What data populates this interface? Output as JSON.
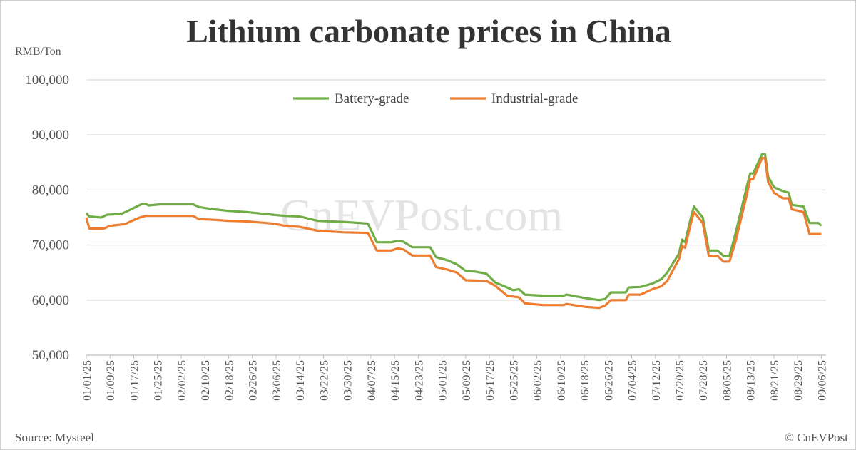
{
  "chart_data": {
    "type": "line",
    "title": "Lithium carbonate prices in China",
    "ylabel": "RMB/Ton",
    "ylim": [
      50000,
      100000
    ],
    "yticks": [
      "50,000",
      "60,000",
      "70,000",
      "80,000",
      "90,000",
      "100,000"
    ],
    "ytick_values": [
      50000,
      60000,
      70000,
      80000,
      90000,
      100000
    ],
    "xlim": [
      "01/01/25",
      "09/07/25"
    ],
    "xticks": [
      "01/01/25",
      "01/09/25",
      "01/17/25",
      "01/25/25",
      "02/02/25",
      "02/10/25",
      "02/18/25",
      "02/26/25",
      "03/06/25",
      "03/14/25",
      "03/22/25",
      "03/30/25",
      "04/07/25",
      "04/15/25",
      "04/23/25",
      "05/01/25",
      "05/09/25",
      "05/17/25",
      "05/25/25",
      "06/02/25",
      "06/10/25",
      "06/18/25",
      "06/26/25",
      "07/04/25",
      "07/12/25",
      "07/20/25",
      "07/28/25",
      "08/05/25",
      "08/13/25",
      "08/21/25",
      "08/29/25",
      "09/06/25"
    ],
    "grid": true,
    "legend_position": "top-center",
    "series": [
      {
        "name": "Battery-grade",
        "color": "#70AD47",
        "points": [
          [
            "01/01/25",
            75800
          ],
          [
            "01/02/25",
            75200
          ],
          [
            "01/06/25",
            75000
          ],
          [
            "01/08/25",
            75500
          ],
          [
            "01/13/25",
            75700
          ],
          [
            "01/15/25",
            76200
          ],
          [
            "01/18/25",
            77000
          ],
          [
            "01/20/25",
            77500
          ],
          [
            "01/21/25",
            77500
          ],
          [
            "01/22/25",
            77200
          ],
          [
            "01/26/25",
            77400
          ],
          [
            "02/06/25",
            77400
          ],
          [
            "02/08/25",
            76900
          ],
          [
            "02/13/25",
            76500
          ],
          [
            "02/18/25",
            76200
          ],
          [
            "02/24/25",
            76000
          ],
          [
            "03/05/25",
            75500
          ],
          [
            "03/09/25",
            75300
          ],
          [
            "03/14/25",
            75200
          ],
          [
            "03/20/25",
            74400
          ],
          [
            "03/29/25",
            74200
          ],
          [
            "04/06/25",
            73900
          ],
          [
            "04/09/25",
            70500
          ],
          [
            "04/14/25",
            70500
          ],
          [
            "04/16/25",
            70800
          ],
          [
            "04/18/25",
            70600
          ],
          [
            "04/21/25",
            69600
          ],
          [
            "04/27/25",
            69600
          ],
          [
            "04/29/25",
            67800
          ],
          [
            "05/03/25",
            67200
          ],
          [
            "05/06/25",
            66500
          ],
          [
            "05/09/25",
            65300
          ],
          [
            "05/12/25",
            65200
          ],
          [
            "05/16/25",
            64800
          ],
          [
            "05/19/25",
            63200
          ],
          [
            "05/23/25",
            62300
          ],
          [
            "05/25/25",
            61800
          ],
          [
            "05/27/25",
            62000
          ],
          [
            "05/29/25",
            61000
          ],
          [
            "06/04/25",
            60800
          ],
          [
            "06/11/25",
            60800
          ],
          [
            "06/12/25",
            61000
          ],
          [
            "06/18/25",
            60400
          ],
          [
            "06/23/25",
            60000
          ],
          [
            "06/25/25",
            60200
          ],
          [
            "06/27/25",
            61400
          ],
          [
            "07/02/25",
            61400
          ],
          [
            "07/03/25",
            62300
          ],
          [
            "07/07/25",
            62400
          ],
          [
            "07/11/25",
            63000
          ],
          [
            "07/14/25",
            63800
          ],
          [
            "07/16/25",
            65000
          ],
          [
            "07/20/25",
            68500
          ],
          [
            "07/21/25",
            71000
          ],
          [
            "07/22/25",
            70500
          ],
          [
            "07/24/25",
            75000
          ],
          [
            "07/25/25",
            77000
          ],
          [
            "07/28/25",
            75000
          ],
          [
            "07/29/25",
            72000
          ],
          [
            "07/30/25",
            69000
          ],
          [
            "08/02/25",
            69000
          ],
          [
            "08/04/25",
            68000
          ],
          [
            "08/06/25",
            68000
          ],
          [
            "08/08/25",
            72000
          ],
          [
            "08/12/25",
            81000
          ],
          [
            "08/13/25",
            83000
          ],
          [
            "08/14/25",
            83000
          ],
          [
            "08/17/25",
            86500
          ],
          [
            "08/18/25",
            86500
          ],
          [
            "08/19/25",
            82500
          ],
          [
            "08/21/25",
            80500
          ],
          [
            "08/24/25",
            79800
          ],
          [
            "08/26/25",
            79500
          ],
          [
            "08/27/25",
            77300
          ],
          [
            "08/31/25",
            77000
          ],
          [
            "09/02/25",
            74000
          ],
          [
            "09/05/25",
            74000
          ],
          [
            "09/06/25",
            73500
          ]
        ]
      },
      {
        "name": "Industrial-grade",
        "color": "#ED7D31",
        "points": [
          [
            "01/01/25",
            75000
          ],
          [
            "01/02/25",
            73000
          ],
          [
            "01/07/25",
            73000
          ],
          [
            "01/09/25",
            73500
          ],
          [
            "01/14/25",
            73800
          ],
          [
            "01/16/25",
            74300
          ],
          [
            "01/19/25",
            75000
          ],
          [
            "01/21/25",
            75300
          ],
          [
            "02/06/25",
            75300
          ],
          [
            "02/08/25",
            74700
          ],
          [
            "02/13/25",
            74600
          ],
          [
            "02/18/25",
            74400
          ],
          [
            "02/24/25",
            74300
          ],
          [
            "03/05/25",
            73900
          ],
          [
            "03/09/25",
            73500
          ],
          [
            "03/14/25",
            73300
          ],
          [
            "03/20/25",
            72600
          ],
          [
            "03/29/25",
            72300
          ],
          [
            "04/06/25",
            72200
          ],
          [
            "04/09/25",
            69000
          ],
          [
            "04/14/25",
            69000
          ],
          [
            "04/16/25",
            69400
          ],
          [
            "04/18/25",
            69200
          ],
          [
            "04/21/25",
            68100
          ],
          [
            "04/27/25",
            68100
          ],
          [
            "04/29/25",
            66000
          ],
          [
            "05/03/25",
            65500
          ],
          [
            "05/06/25",
            65000
          ],
          [
            "05/09/25",
            63600
          ],
          [
            "05/16/25",
            63500
          ],
          [
            "05/19/25",
            62600
          ],
          [
            "05/23/25",
            60800
          ],
          [
            "05/27/25",
            60500
          ],
          [
            "05/29/25",
            59400
          ],
          [
            "06/04/25",
            59100
          ],
          [
            "06/11/25",
            59100
          ],
          [
            "06/12/25",
            59300
          ],
          [
            "06/18/25",
            58800
          ],
          [
            "06/23/25",
            58600
          ],
          [
            "06/25/25",
            59000
          ],
          [
            "06/27/25",
            60000
          ],
          [
            "07/02/25",
            60000
          ],
          [
            "07/03/25",
            61000
          ],
          [
            "07/07/25",
            61000
          ],
          [
            "07/11/25",
            62000
          ],
          [
            "07/14/25",
            62500
          ],
          [
            "07/16/25",
            63500
          ],
          [
            "07/20/25",
            67500
          ],
          [
            "07/21/25",
            69800
          ],
          [
            "07/22/25",
            69500
          ],
          [
            "07/24/25",
            74000
          ],
          [
            "07/25/25",
            76000
          ],
          [
            "07/28/25",
            74000
          ],
          [
            "07/29/25",
            71000
          ],
          [
            "07/30/25",
            68000
          ],
          [
            "08/02/25",
            68000
          ],
          [
            "08/04/25",
            67000
          ],
          [
            "08/06/25",
            67000
          ],
          [
            "08/08/25",
            70500
          ],
          [
            "08/12/25",
            79500
          ],
          [
            "08/13/25",
            82000
          ],
          [
            "08/14/25",
            82000
          ],
          [
            "08/17/25",
            85800
          ],
          [
            "08/18/25",
            85800
          ],
          [
            "08/19/25",
            81500
          ],
          [
            "08/21/25",
            79500
          ],
          [
            "08/24/25",
            78500
          ],
          [
            "08/26/25",
            78500
          ],
          [
            "08/27/25",
            76500
          ],
          [
            "08/31/25",
            76000
          ],
          [
            "09/02/25",
            72000
          ],
          [
            "09/06/25",
            72000
          ]
        ]
      }
    ]
  },
  "source": "Source: Mysteel",
  "copyright": "© CnEVPost",
  "watermark": "CnEVPost.com"
}
